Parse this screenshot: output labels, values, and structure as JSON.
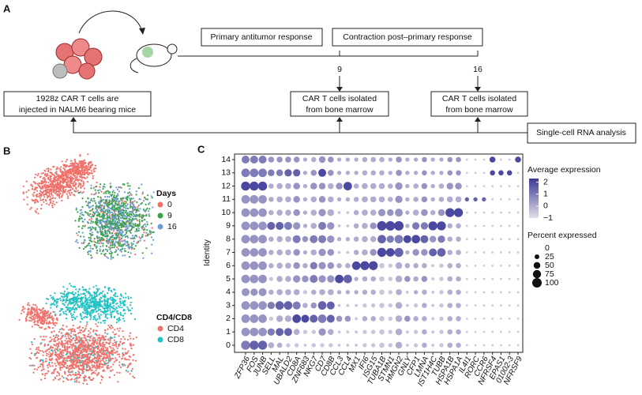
{
  "panel_a": {
    "label": "A",
    "injection": [
      "1928z CAR T cells are",
      "injected in NALM6 bearing mice"
    ],
    "primary": "Primary antitumor response",
    "contraction": "Contraction post–primary response",
    "timepoints": [
      "9",
      "16"
    ],
    "isolated": [
      "CAR T cells isolated",
      "from bone marrow"
    ],
    "analysis": "Single-cell RNA analysis"
  },
  "panel_b": {
    "label": "B",
    "legends": [
      {
        "title": "Days",
        "items": [
          {
            "name": "0",
            "color": "#f0706a"
          },
          {
            "name": "9",
            "color": "#36a444"
          },
          {
            "name": "16",
            "color": "#6d9bd3"
          }
        ]
      },
      {
        "title": "CD4/CD8",
        "items": [
          {
            "name": "CD4",
            "color": "#f0706a"
          },
          {
            "name": "CD8",
            "color": "#22c1c3"
          }
        ]
      }
    ]
  },
  "chart_data": {
    "type": "dotplot",
    "label": "C",
    "y_label": "Identity",
    "categories": [
      "ZFP36",
      "FOS",
      "JUNB",
      "SELL",
      "MAL",
      "UBALD2",
      "CD8A",
      "ZNF683",
      "NKG7",
      "CD7",
      "CD8B",
      "CCL3",
      "CCL4",
      "MX1",
      "IFI6",
      "ISG15",
      "TUBA1B",
      "STMN1",
      "HMGN2",
      "GNLY",
      "CFP1",
      "LMNA",
      "IST1H4C",
      "TUBB",
      "HSPA1B",
      "HSPA1A",
      "IL4I1",
      "RORC",
      "CCR6",
      "NFRSF4",
      "EPAS1",
      "01002-3",
      "NFRSF9"
    ],
    "identities": [
      "0",
      "1",
      "2",
      "3",
      "4",
      "5",
      "6",
      "7",
      "8",
      "9",
      "10",
      "11",
      "12",
      "13",
      "14"
    ],
    "expression": [
      [
        1,
        1.5,
        1.5,
        0,
        0,
        -0.5,
        -0.5,
        -0.5,
        -0.5,
        -0.5,
        -0.5,
        -0.5,
        -0.5,
        -0.5,
        -0.5,
        -0.5,
        -0.5,
        -0.5,
        0,
        -0.5,
        -0.5,
        0,
        -0.5,
        -0.5,
        0,
        0,
        -0.5,
        -0.5,
        -0.5,
        -0.5,
        -0.5,
        -0.5,
        -0.5
      ],
      [
        0.5,
        0.5,
        0.5,
        1,
        1.5,
        1.5,
        0,
        -0.5,
        -0.5,
        0.5,
        0,
        -0.5,
        -0.5,
        -0.5,
        -0.5,
        -0.5,
        -0.5,
        -0.5,
        0,
        -0.5,
        -0.5,
        0,
        -0.5,
        -0.5,
        0,
        0,
        -0.5,
        -0.5,
        -0.5,
        -0.5,
        -0.5,
        -0.5,
        -0.5
      ],
      [
        0.5,
        0.5,
        0.5,
        -0.5,
        0,
        0,
        2,
        2,
        1.5,
        1,
        1.5,
        0.5,
        0.5,
        -0.5,
        0,
        0,
        -0.5,
        -0.5,
        0,
        0.5,
        0,
        0,
        -0.5,
        -0.5,
        0,
        0,
        -0.5,
        -0.5,
        -0.5,
        -0.5,
        -0.5,
        -0.5,
        -0.5
      ],
      [
        0.5,
        0.5,
        0.5,
        1,
        1.5,
        1.5,
        1,
        0,
        0.5,
        1.5,
        1.5,
        -0.5,
        -0.5,
        -0.5,
        -0.5,
        -0.5,
        -0.5,
        -0.5,
        0,
        -0.5,
        -0.5,
        0,
        -0.5,
        -0.5,
        0,
        0,
        -0.5,
        -0.5,
        -0.5,
        -0.5,
        -0.5,
        -0.5,
        -0.5
      ],
      [
        0.5,
        0.5,
        0.5,
        0,
        0,
        0,
        0,
        -0.5,
        0,
        0,
        0,
        0,
        0,
        0,
        0,
        0,
        -0.5,
        -0.5,
        0,
        -0.5,
        0,
        0,
        -0.5,
        -0.5,
        0,
        0,
        -0.5,
        -0.5,
        -0.5,
        -0.5,
        -0.5,
        -0.5,
        -0.5
      ],
      [
        0.5,
        0.5,
        0.5,
        -0.5,
        0,
        0,
        0.5,
        0.5,
        1,
        0.5,
        0.5,
        2,
        1.5,
        0,
        0,
        0,
        -0.5,
        -0.5,
        0,
        0.5,
        0,
        0.5,
        -0.5,
        -0.5,
        0,
        0,
        -0.5,
        -0.5,
        -0.5,
        -0.5,
        -0.5,
        -0.5,
        -0.5
      ],
      [
        0.5,
        0.5,
        0.5,
        0,
        0,
        0,
        0.5,
        0,
        1,
        0.5,
        0.5,
        0,
        0,
        2,
        2,
        2,
        -0.5,
        -0.5,
        0,
        0,
        0,
        0,
        -0.5,
        -0.5,
        0,
        0,
        -0.5,
        -0.5,
        -0.5,
        -0.5,
        -0.5,
        -0.5,
        -0.5
      ],
      [
        0.5,
        0.5,
        0.5,
        0,
        0,
        0,
        0.5,
        0,
        0,
        0.5,
        0.5,
        -0.5,
        -0.5,
        0,
        0,
        0.5,
        2,
        2,
        1.5,
        0,
        0.5,
        0.5,
        1.5,
        1.5,
        0,
        0,
        -0.5,
        -0.5,
        -0.5,
        -0.5,
        -0.5,
        -0.5,
        -0.5
      ],
      [
        0.5,
        0.5,
        0.5,
        0,
        0,
        0,
        1,
        0.5,
        1,
        1,
        0.5,
        0,
        0,
        0,
        0,
        0,
        1.5,
        1,
        1,
        2,
        2,
        1.5,
        0.5,
        1,
        0,
        0,
        -0.5,
        -0.5,
        -0.5,
        -0.5,
        -0.5,
        -0.5,
        -0.5
      ],
      [
        0.5,
        0.5,
        0.5,
        1.5,
        1.5,
        1,
        0.5,
        0,
        0,
        1,
        0.5,
        -0.5,
        -0.5,
        0,
        0,
        0.5,
        2,
        2,
        2,
        0,
        1,
        1,
        2,
        2,
        0,
        0,
        -0.5,
        -0.5,
        -0.5,
        -0.5,
        -0.5,
        -0.5,
        -0.5
      ],
      [
        0.5,
        0.5,
        0.5,
        0,
        0,
        0,
        0.5,
        0,
        0,
        0.5,
        0,
        -0.5,
        -0.5,
        0,
        0,
        0,
        0.5,
        0.5,
        0.5,
        0,
        0,
        0.5,
        0,
        0.5,
        2,
        2,
        -0.5,
        -0.5,
        -0.5,
        -0.5,
        -0.5,
        -0.5,
        -0.5
      ],
      [
        0.5,
        0.5,
        0.5,
        0,
        0,
        0,
        0.5,
        0,
        0,
        0.5,
        0,
        0,
        0,
        0,
        0,
        0,
        0,
        0,
        0.5,
        0,
        0,
        0.5,
        0,
        0,
        0,
        0,
        1.5,
        1.5,
        1.5,
        -0.5,
        -0.5,
        -0.5,
        -0.5
      ],
      [
        2,
        2,
        2,
        0,
        0,
        0,
        0.5,
        0,
        0.5,
        0.5,
        0,
        0.5,
        2,
        0,
        0,
        0,
        0,
        0,
        0.5,
        0,
        0,
        0.5,
        0,
        0,
        0.5,
        0.5,
        -0.5,
        -0.5,
        -0.5,
        -0.5,
        -0.5,
        -0.5,
        -0.5
      ],
      [
        1,
        1,
        1,
        1,
        1,
        1.5,
        1.5,
        0,
        0.5,
        2,
        0.5,
        0,
        0,
        0,
        0,
        0,
        0,
        0,
        0.5,
        0,
        0,
        0.5,
        0,
        0,
        0.5,
        0.5,
        -0.5,
        -0.5,
        -0.5,
        2,
        2,
        2,
        -0.5
      ],
      [
        1,
        1,
        1,
        0.5,
        0.5,
        0.5,
        0.5,
        0,
        0,
        0.5,
        0.5,
        0,
        0,
        0,
        0,
        0,
        0,
        0,
        0.5,
        0,
        0,
        0.5,
        0,
        0,
        0.5,
        0.5,
        -0.5,
        -0.5,
        -0.5,
        2,
        -0.5,
        -0.5,
        2
      ]
    ],
    "percent": [
      [
        90,
        90,
        90,
        40,
        30,
        20,
        20,
        10,
        20,
        20,
        20,
        10,
        10,
        10,
        20,
        20,
        30,
        20,
        50,
        10,
        20,
        30,
        10,
        20,
        30,
        30,
        5,
        5,
        5,
        5,
        5,
        5,
        5
      ],
      [
        80,
        80,
        80,
        60,
        70,
        70,
        40,
        20,
        20,
        60,
        40,
        10,
        10,
        10,
        20,
        20,
        30,
        20,
        50,
        10,
        20,
        30,
        10,
        20,
        30,
        30,
        5,
        5,
        5,
        5,
        5,
        5,
        5
      ],
      [
        80,
        80,
        80,
        20,
        50,
        50,
        80,
        70,
        70,
        80,
        70,
        40,
        40,
        10,
        30,
        30,
        30,
        20,
        50,
        40,
        30,
        30,
        10,
        20,
        30,
        30,
        5,
        5,
        5,
        5,
        5,
        5,
        5
      ],
      [
        80,
        80,
        80,
        60,
        80,
        80,
        70,
        30,
        40,
        80,
        70,
        10,
        10,
        10,
        20,
        20,
        30,
        20,
        50,
        10,
        20,
        30,
        10,
        20,
        30,
        30,
        5,
        5,
        5,
        5,
        5,
        5,
        5
      ],
      [
        70,
        60,
        70,
        30,
        40,
        40,
        40,
        20,
        30,
        40,
        40,
        20,
        20,
        20,
        30,
        30,
        30,
        20,
        40,
        10,
        20,
        30,
        10,
        20,
        30,
        30,
        5,
        5,
        5,
        5,
        5,
        5,
        5
      ],
      [
        80,
        80,
        80,
        20,
        40,
        40,
        60,
        50,
        70,
        60,
        60,
        80,
        80,
        20,
        30,
        30,
        30,
        20,
        50,
        40,
        30,
        40,
        10,
        20,
        30,
        30,
        5,
        5,
        5,
        5,
        5,
        5,
        5
      ],
      [
        80,
        80,
        80,
        30,
        40,
        40,
        50,
        30,
        60,
        60,
        50,
        30,
        30,
        80,
        90,
        90,
        30,
        20,
        50,
        30,
        30,
        30,
        10,
        20,
        30,
        30,
        5,
        5,
        5,
        5,
        5,
        5,
        5
      ],
      [
        80,
        80,
        80,
        30,
        40,
        40,
        50,
        20,
        40,
        60,
        50,
        10,
        10,
        30,
        40,
        50,
        90,
        80,
        90,
        20,
        50,
        50,
        70,
        80,
        30,
        30,
        5,
        5,
        5,
        5,
        5,
        5,
        5
      ],
      [
        80,
        80,
        80,
        30,
        40,
        40,
        70,
        40,
        70,
        70,
        60,
        20,
        20,
        30,
        40,
        40,
        80,
        60,
        80,
        70,
        80,
        70,
        50,
        60,
        30,
        30,
        5,
        5,
        5,
        5,
        5,
        5,
        5
      ],
      [
        80,
        80,
        80,
        70,
        70,
        70,
        60,
        20,
        40,
        70,
        60,
        10,
        10,
        30,
        40,
        50,
        100,
        100,
        100,
        20,
        60,
        60,
        90,
        90,
        30,
        30,
        5,
        5,
        5,
        5,
        5,
        5,
        5
      ],
      [
        80,
        80,
        80,
        30,
        40,
        40,
        50,
        20,
        40,
        60,
        50,
        10,
        10,
        30,
        40,
        40,
        60,
        50,
        70,
        20,
        40,
        50,
        30,
        50,
        90,
        90,
        5,
        5,
        5,
        5,
        5,
        5,
        5
      ],
      [
        80,
        80,
        80,
        30,
        40,
        40,
        50,
        20,
        40,
        50,
        40,
        20,
        20,
        30,
        40,
        40,
        40,
        30,
        60,
        20,
        30,
        40,
        20,
        30,
        40,
        40,
        20,
        20,
        20,
        5,
        5,
        5,
        5
      ],
      [
        90,
        90,
        90,
        30,
        40,
        40,
        50,
        20,
        50,
        50,
        40,
        50,
        80,
        30,
        40,
        40,
        40,
        30,
        60,
        20,
        30,
        40,
        20,
        30,
        50,
        50,
        5,
        5,
        5,
        5,
        5,
        5,
        5
      ],
      [
        80,
        80,
        80,
        50,
        50,
        60,
        60,
        20,
        40,
        70,
        40,
        20,
        20,
        20,
        30,
        30,
        30,
        20,
        40,
        20,
        20,
        30,
        20,
        20,
        30,
        30,
        5,
        5,
        5,
        30,
        30,
        30,
        5
      ],
      [
        70,
        70,
        70,
        40,
        40,
        40,
        40,
        20,
        30,
        50,
        40,
        20,
        20,
        20,
        30,
        30,
        30,
        20,
        40,
        20,
        20,
        30,
        20,
        20,
        30,
        30,
        5,
        5,
        5,
        40,
        5,
        5,
        40
      ]
    ],
    "color_legend_title": "Average expression",
    "clim": [
      -1,
      2.3
    ],
    "cticks": [
      2,
      1,
      0,
      {
        "value": -1,
        "label": "−1"
      }
    ],
    "colors": [
      "#e2dfe8",
      "#3c3a98"
    ],
    "size_legend_title": "Percent expressed",
    "size_lim": [
      0,
      100
    ],
    "size_ticks": [
      0,
      25,
      50,
      75,
      100
    ]
  }
}
